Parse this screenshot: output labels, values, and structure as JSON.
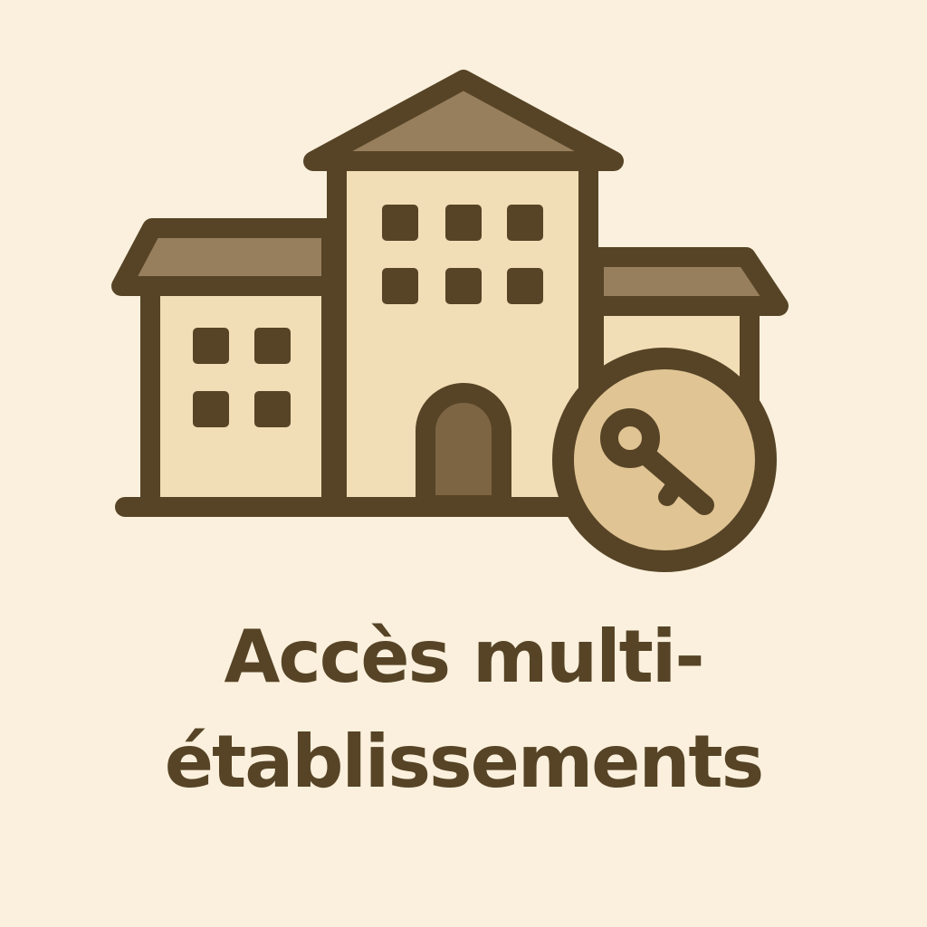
{
  "caption": {
    "line1": "Accès multi-",
    "line2": "établissements"
  },
  "icons": {
    "main": "buildings-icon",
    "badge": "key-icon"
  },
  "colors": {
    "background": "#FAF0DD",
    "outline": "#574426",
    "wall": "#F1DEB6",
    "roof": "#977F5D",
    "door": "#7D6443",
    "badge_fill": "#E0C494",
    "text": "#574426"
  }
}
